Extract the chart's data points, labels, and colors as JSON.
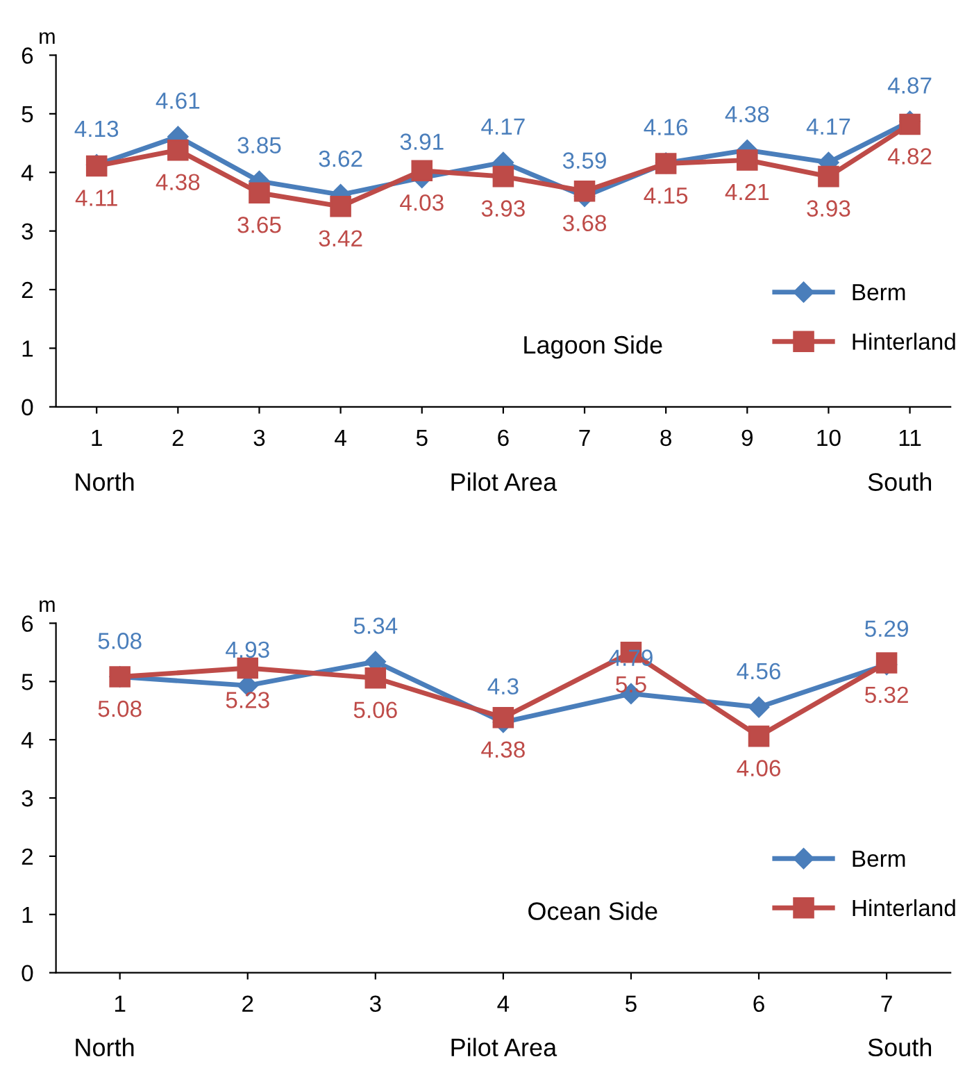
{
  "chart_data": [
    {
      "type": "line",
      "ylabel": "m",
      "categories": [
        "1",
        "2",
        "3",
        "4",
        "5",
        "6",
        "7",
        "8",
        "9",
        "10",
        "11"
      ],
      "ylim": [
        0,
        6
      ],
      "yticks": [
        0,
        1,
        2,
        3,
        4,
        5,
        6
      ],
      "grid": false,
      "legend": "right",
      "data_labels": true,
      "annotations": [
        "North",
        "Pilot Area",
        "South",
        "Lagoon Side"
      ],
      "series": [
        {
          "name": "Berm",
          "color": "#4a7ebb",
          "marker": "diamond",
          "values": [
            4.13,
            4.61,
            3.85,
            3.62,
            3.91,
            4.17,
            3.59,
            4.16,
            4.38,
            4.17,
            4.87
          ]
        },
        {
          "name": "Hinterland",
          "color": "#be4b48",
          "marker": "square",
          "values": [
            4.11,
            4.38,
            3.65,
            3.42,
            4.03,
            3.93,
            3.68,
            4.15,
            4.21,
            3.93,
            4.82
          ]
        }
      ]
    },
    {
      "type": "line",
      "ylabel": "m",
      "categories": [
        "1",
        "2",
        "3",
        "4",
        "5",
        "6",
        "7"
      ],
      "ylim": [
        0,
        6
      ],
      "yticks": [
        0,
        1,
        2,
        3,
        4,
        5,
        6
      ],
      "grid": false,
      "legend": "right",
      "data_labels": true,
      "annotations": [
        "North",
        "Pilot Area",
        "South",
        "Ocean Side"
      ],
      "series": [
        {
          "name": "Berm",
          "color": "#4a7ebb",
          "marker": "diamond",
          "values": [
            5.08,
            4.93,
            5.34,
            4.3,
            4.79,
            4.56,
            5.29
          ]
        },
        {
          "name": "Hinterland",
          "color": "#be4b48",
          "marker": "square",
          "values": [
            5.08,
            5.23,
            5.06,
            4.38,
            5.5,
            4.06,
            5.32
          ]
        }
      ]
    }
  ]
}
